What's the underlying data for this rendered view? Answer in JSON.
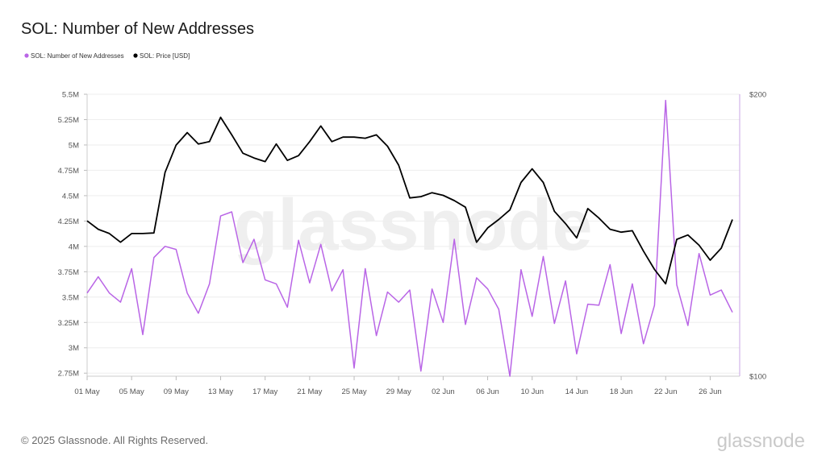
{
  "title": "SOL: Number of New Addresses",
  "legend": [
    {
      "label": "SOL: Number of New Addresses",
      "color": "#b965e6"
    },
    {
      "label": "SOL: Price [USD]",
      "color": "#000000"
    }
  ],
  "footer": "© 2025 Glassnode. All Rights Reserved.",
  "brand": "glassnode",
  "watermark": "glassnode",
  "chart_data": {
    "type": "line",
    "x": [
      "01 May",
      "02 May",
      "03 May",
      "04 May",
      "05 May",
      "06 May",
      "07 May",
      "08 May",
      "09 May",
      "10 May",
      "11 May",
      "12 May",
      "13 May",
      "14 May",
      "15 May",
      "16 May",
      "17 May",
      "18 May",
      "19 May",
      "20 May",
      "21 May",
      "22 May",
      "23 May",
      "24 May",
      "25 May",
      "26 May",
      "27 May",
      "28 May",
      "29 May",
      "30 May",
      "31 May",
      "01 Jun",
      "02 Jun",
      "03 Jun",
      "04 Jun",
      "05 Jun",
      "06 Jun",
      "07 Jun",
      "08 Jun",
      "09 Jun",
      "10 Jun",
      "11 Jun",
      "12 Jun",
      "13 Jun",
      "14 Jun",
      "15 Jun",
      "16 Jun",
      "17 Jun",
      "18 Jun",
      "19 Jun",
      "20 Jun",
      "21 Jun",
      "22 Jun",
      "23 Jun",
      "24 Jun",
      "25 Jun",
      "26 Jun",
      "27 Jun",
      "28 Jun"
    ],
    "x_tick_labels": [
      "01 May",
      "05 May",
      "09 May",
      "13 May",
      "17 May",
      "21 May",
      "25 May",
      "29 May",
      "02 Jun",
      "06 Jun",
      "10 Jun",
      "14 Jun",
      "18 Jun",
      "22 Jun",
      "26 Jun"
    ],
    "y_left": {
      "ticks": [
        "5.5M",
        "5.25M",
        "5M",
        "4.75M",
        "4.5M",
        "4.25M",
        "4M",
        "3.75M",
        "3.5M",
        "3.25M",
        "3M",
        "2.75M"
      ],
      "ylim": [
        2.72,
        5.5
      ]
    },
    "y_right": {
      "ticks": [
        "$200",
        "$100"
      ],
      "ylim": [
        100,
        200
      ],
      "scale": "log"
    },
    "grid": "horizontal",
    "legend_position": "top-left",
    "series": [
      {
        "name": "SOL: Number of New Addresses",
        "color": "#b965e6",
        "axis": "left",
        "unit": "M",
        "values": [
          3.54,
          3.7,
          3.54,
          3.45,
          3.78,
          3.13,
          3.89,
          4.0,
          3.97,
          3.54,
          3.34,
          3.63,
          4.3,
          4.34,
          3.84,
          4.07,
          3.67,
          3.63,
          3.4,
          4.06,
          3.64,
          4.02,
          3.56,
          3.77,
          2.8,
          3.78,
          3.12,
          3.55,
          3.45,
          3.57,
          2.77,
          3.58,
          3.25,
          4.07,
          3.23,
          3.69,
          3.58,
          3.38,
          2.72,
          3.77,
          3.31,
          3.9,
          3.24,
          3.66,
          2.94,
          3.43,
          3.42,
          3.82,
          3.14,
          3.63,
          3.04,
          3.42,
          5.44,
          3.62,
          3.22,
          3.93,
          3.52,
          3.57,
          3.35
        ]
      },
      {
        "name": "SOL: Price [USD]",
        "color": "#000000",
        "axis": "right",
        "unit": "USD",
        "values": [
          146.5,
          143.5,
          142,
          139,
          142,
          142,
          142.2,
          165,
          176.5,
          182,
          177,
          178,
          189,
          181,
          173,
          171,
          169.5,
          177,
          170,
          172,
          178,
          185,
          178,
          180,
          180,
          179.5,
          181,
          176,
          168,
          155,
          155.5,
          157,
          156,
          154,
          151.5,
          139,
          144,
          147,
          150.5,
          161,
          166.5,
          161,
          150,
          145.5,
          140.5,
          151,
          147.5,
          143.5,
          142.5,
          143,
          136,
          130,
          125.5,
          140,
          141.5,
          138,
          133,
          137,
          147
        ]
      }
    ]
  }
}
